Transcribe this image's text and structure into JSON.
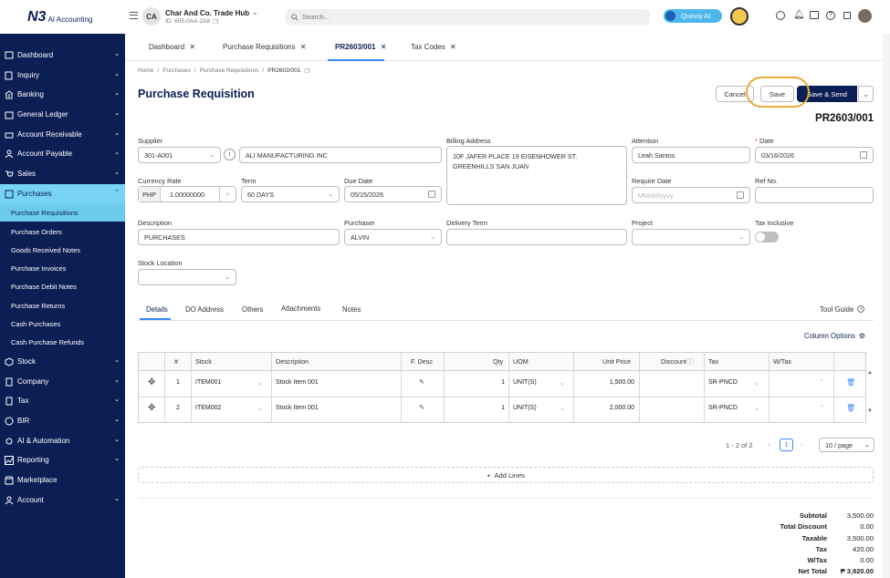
{
  "brand": {
    "logo_text": "N3",
    "app_name": "AI Accounting"
  },
  "company": {
    "avatar": "CA",
    "name": "Char And Co. Trade Hub",
    "id": "ID: 605-0AA-2A8"
  },
  "search": {
    "placeholder": "Search..."
  },
  "assistant": {
    "label": "Quinny AI"
  },
  "sidebar": {
    "items": [
      {
        "label": "Dashboard"
      },
      {
        "label": "Inquiry"
      },
      {
        "label": "Banking"
      },
      {
        "label": "General Ledger"
      },
      {
        "label": "Account Receivable"
      },
      {
        "label": "Account Payable"
      },
      {
        "label": "Sales"
      },
      {
        "label": "Purchases"
      },
      {
        "label": "Stock"
      },
      {
        "label": "Company"
      },
      {
        "label": "Tax"
      },
      {
        "label": "BIR"
      },
      {
        "label": "AI & Automation"
      },
      {
        "label": "Reporting"
      },
      {
        "label": "Marketplace"
      },
      {
        "label": "Account"
      }
    ],
    "purchases_sub": [
      {
        "label": "Purchase Requisitions"
      },
      {
        "label": "Purchase Orders"
      },
      {
        "label": "Goods Received Notes"
      },
      {
        "label": "Purchase Invoices"
      },
      {
        "label": "Purchase Debit Notes"
      },
      {
        "label": "Purchase Returns"
      },
      {
        "label": "Cash Purchases"
      },
      {
        "label": "Cash Purchase Refunds"
      }
    ]
  },
  "tabs": [
    {
      "label": "Dashboard"
    },
    {
      "label": "Purchase Requisitions"
    },
    {
      "label": "PR2603/001"
    },
    {
      "label": "Tax Codes"
    }
  ],
  "breadcrumb": [
    "Home",
    "Purchases",
    "Purchase Requisitions",
    "PR2603/001"
  ],
  "page": {
    "title": "Purchase Requisition",
    "doc_no": "PR2603/001"
  },
  "actions": {
    "cancel": "Cancel",
    "save": "Save",
    "save_send": "Save & Send"
  },
  "form": {
    "supplier_label": "Supplier",
    "supplier_code": "301-A001",
    "supplier_name": "ALI MANUFACTURING INC",
    "billing_label": "Billing Address",
    "billing_line1": "10F JAFER PLACE 19 EISENHOWER ST.",
    "billing_line2": "GREENHILLS SAN JUAN",
    "attention_label": "Attention",
    "attention": "Leah Santos",
    "date_label": "Date",
    "date": "03/16/2026",
    "currency_label": "Currency Rate",
    "currency": "PHP",
    "rate": "1.00000000",
    "term_label": "Term",
    "term": "60 DAYS",
    "due_label": "Due Date",
    "due": "05/15/2026",
    "require_label": "Require Date",
    "require_placeholder": "MM/dd/yyyy",
    "ref_label": "Ref No.",
    "description_label": "Description",
    "description": "PURCHASES",
    "purchaser_label": "Purchaser",
    "purchaser": "ALVIN",
    "delivery_label": "Delivery Term",
    "project_label": "Project",
    "tax_inclusive_label": "Tax Inclusive",
    "stock_location_label": "Stock Location"
  },
  "subtabs": [
    "Details",
    "DO Address",
    "Others",
    "Attachments",
    "Notes"
  ],
  "tool_guide": "Tool Guide",
  "column_options": "Column Options",
  "table": {
    "headers": [
      "#",
      "Stock",
      "Description",
      "F. Desc",
      "Qty",
      "UOM",
      "Unit Price",
      "Discount",
      "Tax",
      "W/Tax"
    ],
    "rows": [
      {
        "no": "1",
        "stock": "ITEM001",
        "desc": "Stock Item 001",
        "qty": "1",
        "uom": "UNIT(S)",
        "price": "1,500.00",
        "tax": "SR-PNCD"
      },
      {
        "no": "2",
        "stock": "ITEM002",
        "desc": "Stock Item 001",
        "qty": "1",
        "uom": "UNIT(S)",
        "price": "2,000.00",
        "tax": "SR-PNCD"
      }
    ]
  },
  "pagination": {
    "summary": "1 - 2 of 2",
    "page": "1",
    "page_size": "10 / page"
  },
  "add_lines": "Add Lines",
  "totals": [
    {
      "label": "Subtotal",
      "value": "3,500.00"
    },
    {
      "label": "Total Discount",
      "value": "0.00"
    },
    {
      "label": "Taxable",
      "value": "3,500.00"
    },
    {
      "label": "Tax",
      "value": "420.00"
    },
    {
      "label": "W/Tax",
      "value": "0.00"
    },
    {
      "label": "Net Total",
      "value": "₱ 3,920.00"
    }
  ],
  "colors": {
    "sidebar": "#0c1f55",
    "accent": "#78d3f2",
    "primary": "#0c1f55",
    "highlight": "#e8a93a"
  }
}
